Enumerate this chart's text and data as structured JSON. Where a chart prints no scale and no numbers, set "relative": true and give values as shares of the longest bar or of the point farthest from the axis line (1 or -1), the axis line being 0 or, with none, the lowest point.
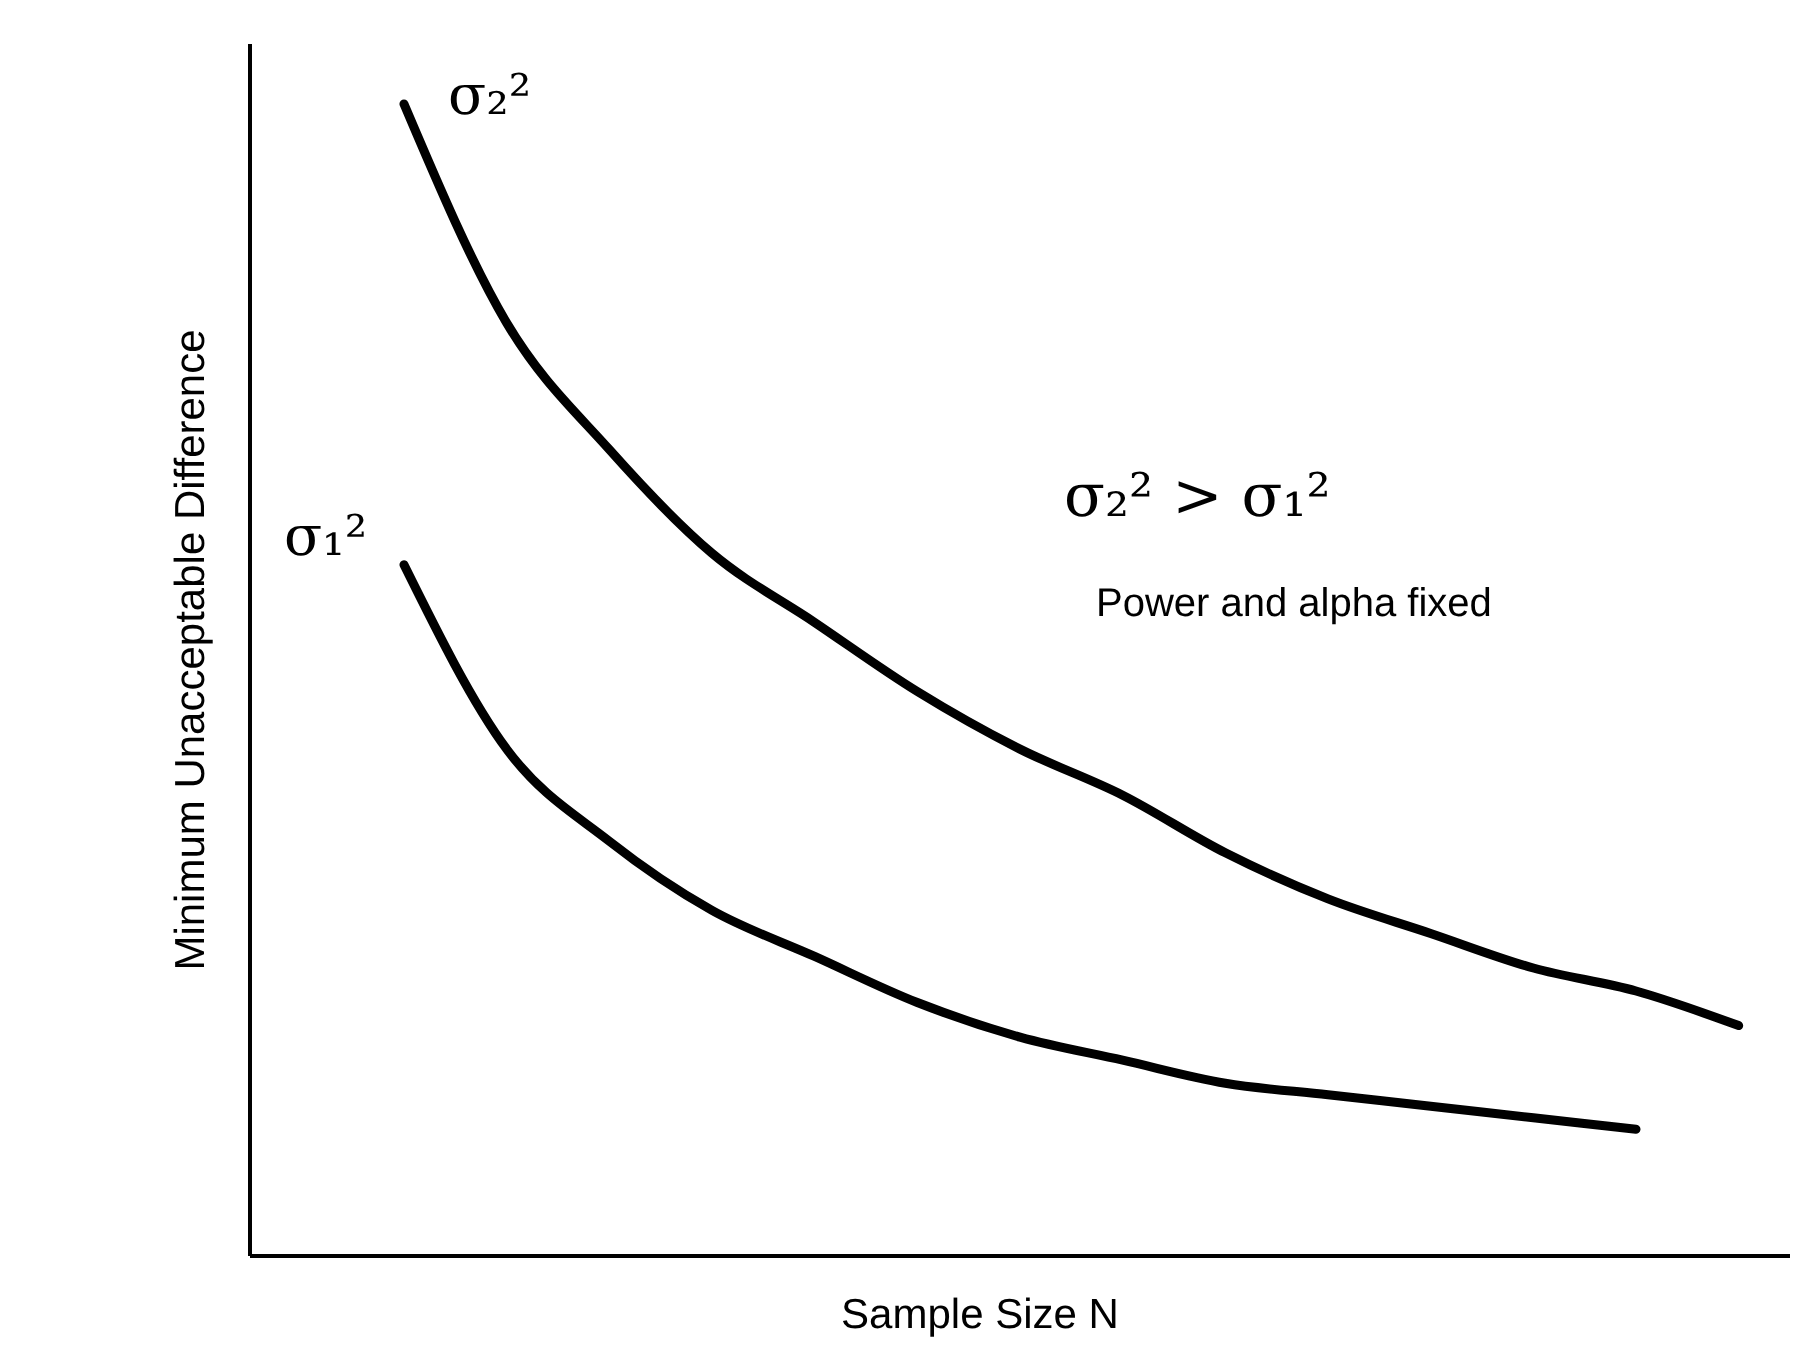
{
  "chart_data": {
    "type": "line",
    "relative": true,
    "xlabel": "Sample Size N",
    "ylabel": "Minimum Unacceptable Difference",
    "categories": [
      null,
      null,
      null,
      null,
      null,
      null,
      null,
      null,
      null,
      null,
      null,
      null,
      null,
      null
    ],
    "series": [
      {
        "name": "σ₂²",
        "color": "#000000",
        "values": [
          1.0,
          0.81,
          0.7,
          0.61,
          0.55,
          0.49,
          0.44,
          0.4,
          0.35,
          0.31,
          0.28,
          0.25,
          0.23,
          0.2
        ]
      },
      {
        "name": "σ₁²",
        "color": "#000000",
        "values": [
          0.6,
          0.44,
          0.36,
          0.3,
          0.26,
          0.22,
          0.19,
          0.17,
          0.15,
          0.14,
          0.13,
          0.12,
          0.11,
          null
        ]
      }
    ],
    "annotations": [
      "σ₂² > σ₁²",
      "Power and alpha fixed"
    ]
  }
}
